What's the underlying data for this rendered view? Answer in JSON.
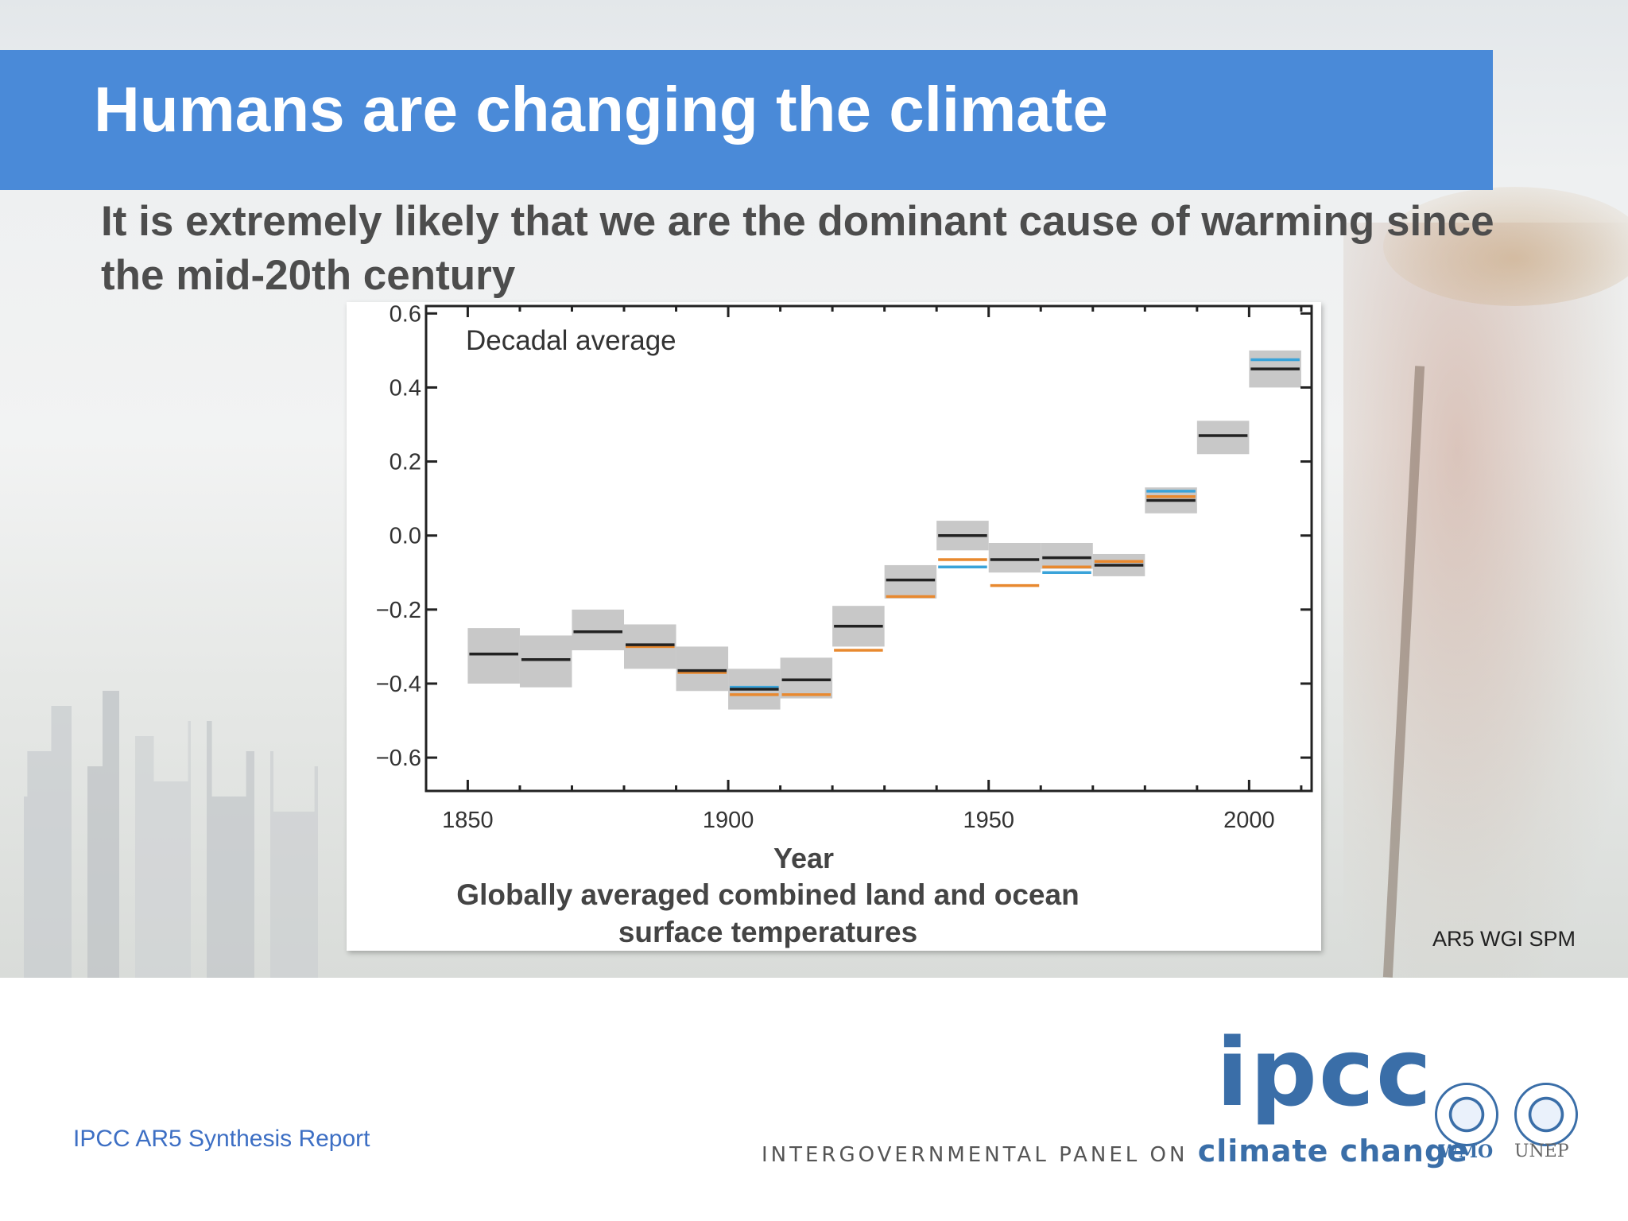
{
  "slide": {
    "title": "Humans are changing the climate",
    "subtitle": "It is extremely likely that we are the dominant cause of warming since the mid-20th century",
    "source": "AR5 WGI SPM",
    "report": "IPCC AR5 Synthesis Report",
    "accent_color": "#4a8ad8"
  },
  "logo": {
    "wordmark": "ipcc",
    "tagline": "INTERGOVERNMENTAL PANEL ON",
    "tagline_emphasis": "climate change",
    "partner_1": "WMO",
    "partner_2": "UNEP"
  },
  "chart_data": {
    "type": "line",
    "annotation": "Decadal average",
    "xlabel": "Year",
    "caption": "Globally averaged combined land and ocean surface temperatures",
    "xlim": [
      1842,
      2012
    ],
    "ylim": [
      -0.69,
      0.62
    ],
    "xticks": [
      1850,
      1900,
      1950,
      2000
    ],
    "yticks": [
      "0.6",
      "0.4",
      "0.2",
      "0.0",
      "−0.2",
      "−0.4",
      "−0.6"
    ],
    "ytick_values": [
      0.6,
      0.4,
      0.2,
      0.0,
      -0.2,
      -0.4,
      -0.6
    ],
    "decades": [
      {
        "start": 1850,
        "end": 1860,
        "unc_low": -0.4,
        "unc_high": -0.25
      },
      {
        "start": 1860,
        "end": 1870,
        "unc_low": -0.41,
        "unc_high": -0.27
      },
      {
        "start": 1870,
        "end": 1880,
        "unc_low": -0.31,
        "unc_high": -0.2
      },
      {
        "start": 1880,
        "end": 1890,
        "unc_low": -0.36,
        "unc_high": -0.24
      },
      {
        "start": 1890,
        "end": 1900,
        "unc_low": -0.42,
        "unc_high": -0.3
      },
      {
        "start": 1900,
        "end": 1910,
        "unc_low": -0.47,
        "unc_high": -0.36
      },
      {
        "start": 1910,
        "end": 1920,
        "unc_low": -0.44,
        "unc_high": -0.33
      },
      {
        "start": 1920,
        "end": 1930,
        "unc_low": -0.3,
        "unc_high": -0.19
      },
      {
        "start": 1930,
        "end": 1940,
        "unc_low": -0.17,
        "unc_high": -0.08
      },
      {
        "start": 1940,
        "end": 1950,
        "unc_low": -0.04,
        "unc_high": 0.04
      },
      {
        "start": 1950,
        "end": 1960,
        "unc_low": -0.1,
        "unc_high": -0.02
      },
      {
        "start": 1960,
        "end": 1970,
        "unc_low": -0.09,
        "unc_high": -0.02
      },
      {
        "start": 1970,
        "end": 1980,
        "unc_low": -0.11,
        "unc_high": -0.05
      },
      {
        "start": 1980,
        "end": 1990,
        "unc_low": 0.06,
        "unc_high": 0.13
      },
      {
        "start": 1990,
        "end": 2000,
        "unc_low": 0.22,
        "unc_high": 0.31
      },
      {
        "start": 2000,
        "end": 2010,
        "unc_low": 0.4,
        "unc_high": 0.5
      }
    ],
    "series": [
      {
        "color": "#222222",
        "values": [
          -0.32,
          -0.335,
          -0.26,
          -0.295,
          -0.365,
          -0.415,
          -0.39,
          -0.245,
          -0.12,
          0.0,
          -0.065,
          -0.06,
          -0.08,
          0.095,
          0.27,
          0.45
        ]
      },
      {
        "color": "#e8892f",
        "values": [
          null,
          null,
          null,
          -0.3,
          -0.37,
          -0.43,
          -0.43,
          -0.31,
          -0.165,
          -0.065,
          -0.135,
          -0.085,
          -0.07,
          0.105,
          null,
          null
        ]
      },
      {
        "color": "#3aa3d9",
        "values": [
          null,
          null,
          null,
          null,
          null,
          -0.41,
          null,
          null,
          null,
          -0.085,
          null,
          -0.1,
          null,
          0.12,
          null,
          0.475
        ]
      }
    ]
  }
}
